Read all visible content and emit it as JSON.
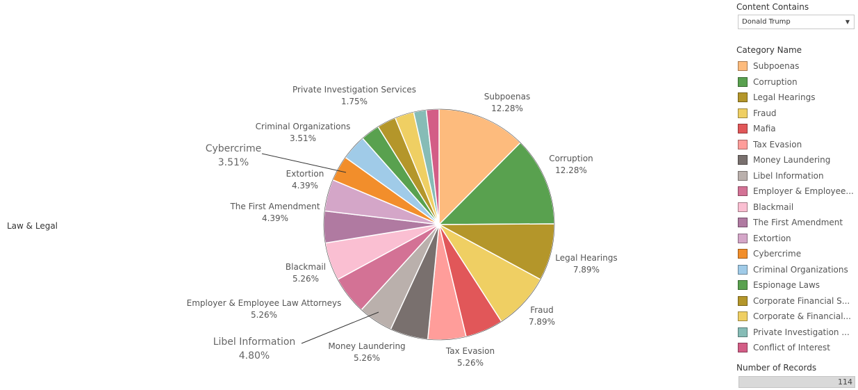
{
  "row_header": "Law & Legal",
  "filter": {
    "title": "Content Contains",
    "value": "Donald Trump"
  },
  "legend": {
    "title": "Category Name",
    "items": [
      {
        "label": "Subpoenas",
        "color": "#FDBB7D"
      },
      {
        "label": "Corruption",
        "color": "#59A14F"
      },
      {
        "label": "Legal Hearings",
        "color": "#B4962A"
      },
      {
        "label": "Fraud",
        "color": "#EFCF63"
      },
      {
        "label": "Mafia",
        "color": "#E15759"
      },
      {
        "label": "Tax Evasion",
        "color": "#FF9D9A"
      },
      {
        "label": "Money Laundering",
        "color": "#79706E"
      },
      {
        "label": "Libel Information",
        "color": "#BAB0AC"
      },
      {
        "label": "Employer & Employee...",
        "color": "#D37295"
      },
      {
        "label": "Blackmail",
        "color": "#FABFD2"
      },
      {
        "label": "The First Amendment",
        "color": "#B07AA1"
      },
      {
        "label": "Extortion",
        "color": "#D4A6C8"
      },
      {
        "label": "Cybercrime",
        "color": "#F28E2B"
      },
      {
        "label": "Criminal Organizations",
        "color": "#A0CBE8"
      },
      {
        "label": "Espionage Laws",
        "color": "#59A14F"
      },
      {
        "label": "Corporate Financial S...",
        "color": "#B4962A"
      },
      {
        "label": "Corporate & Financial...",
        "color": "#EFCF63"
      },
      {
        "label": "Private Investigation ...",
        "color": "#86BCB6"
      },
      {
        "label": "Conflict of Interest",
        "color": "#D35D86"
      }
    ]
  },
  "records": {
    "title": "Number of Records",
    "value": "114"
  },
  "chart_data": {
    "type": "pie",
    "total_records": 114,
    "slices": [
      {
        "name": "Subpoenas",
        "percent": 12.28,
        "color": "#FDBB7D",
        "label": [
          "Subpoenas",
          "12.28%"
        ]
      },
      {
        "name": "Corruption",
        "percent": 12.28,
        "color": "#59A14F",
        "label": [
          "Corruption",
          "12.28%"
        ]
      },
      {
        "name": "Legal Hearings",
        "percent": 7.89,
        "color": "#B4962A",
        "label": [
          "Legal Hearings",
          "7.89%"
        ]
      },
      {
        "name": "Fraud",
        "percent": 7.89,
        "color": "#EFCF63",
        "label": [
          "Fraud",
          "7.89%"
        ]
      },
      {
        "name": "Mafia",
        "percent": 5.26,
        "color": "#E15759",
        "label": null
      },
      {
        "name": "Tax Evasion",
        "percent": 5.26,
        "color": "#FF9D9A",
        "label": [
          "Tax Evasion",
          "5.26%"
        ]
      },
      {
        "name": "Money Laundering",
        "percent": 5.26,
        "color": "#79706E",
        "label": [
          "Money Laundering",
          "5.26%"
        ]
      },
      {
        "name": "Libel Information",
        "percent": 4.8,
        "color": "#BAB0AC",
        "label": [
          "Libel Information",
          "4.80%"
        ]
      },
      {
        "name": "Employer & Employee Law Attorneys",
        "percent": 5.26,
        "color": "#D37295",
        "label": [
          "Employer & Employee Law Attorneys",
          "5.26%"
        ]
      },
      {
        "name": "Blackmail",
        "percent": 5.26,
        "color": "#FABFD2",
        "label": [
          "Blackmail",
          "5.26%"
        ]
      },
      {
        "name": "The First Amendment",
        "percent": 4.39,
        "color": "#B07AA1",
        "label": [
          "The First Amendment",
          "4.39%"
        ]
      },
      {
        "name": "Extortion",
        "percent": 4.39,
        "color": "#D4A6C8",
        "label": [
          "Extortion",
          "4.39%"
        ]
      },
      {
        "name": "Cybercrime",
        "percent": 3.51,
        "color": "#F28E2B",
        "label": [
          "Cybercrime",
          "3.51%"
        ]
      },
      {
        "name": "Criminal Organizations",
        "percent": 3.51,
        "color": "#A0CBE8",
        "label": [
          "Criminal Organizations",
          "3.51%"
        ]
      },
      {
        "name": "Espionage Laws",
        "percent": 2.63,
        "color": "#59A14F",
        "label": null
      },
      {
        "name": "Corporate Financial S...",
        "percent": 2.63,
        "color": "#B4962A",
        "label": null
      },
      {
        "name": "Corporate & Financial...",
        "percent": 2.63,
        "color": "#EFCF63",
        "label": null
      },
      {
        "name": "Private Investigation Services",
        "percent": 1.75,
        "color": "#86BCB6",
        "label": [
          "Private Investigation Services",
          "1.75%"
        ]
      },
      {
        "name": "Conflict of Interest",
        "percent": 1.75,
        "color": "#D35D86",
        "label": null
      }
    ]
  }
}
